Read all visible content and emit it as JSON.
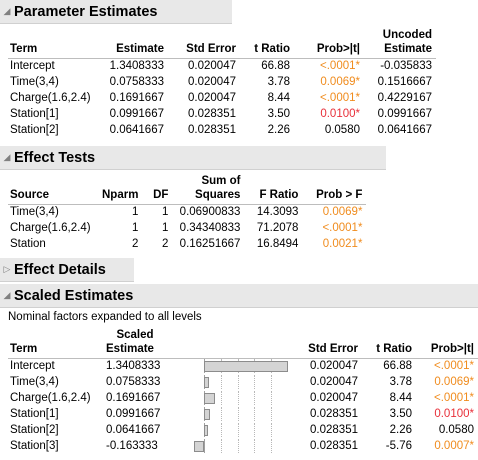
{
  "param": {
    "title": "Parameter Estimates",
    "headers": {
      "term": "Term",
      "estimate": "Estimate",
      "std_error": "Std Error",
      "t_ratio": "t Ratio",
      "prob": "Prob>|t|",
      "uncoded_1": "Uncoded",
      "uncoded_2": "Estimate"
    },
    "rows": [
      {
        "term": "Intercept",
        "estimate": "1.3408333",
        "std_error": "0.020047",
        "t_ratio": "66.88",
        "prob": "<.0001*",
        "prob_color": "orange",
        "uncoded": "-0.035833"
      },
      {
        "term": "Time(3,4)",
        "estimate": "0.0758333",
        "std_error": "0.020047",
        "t_ratio": "3.78",
        "prob": "0.0069*",
        "prob_color": "orange",
        "uncoded": "0.1516667"
      },
      {
        "term": "Charge(1.6,2.4)",
        "estimate": "0.1691667",
        "std_error": "0.020047",
        "t_ratio": "8.44",
        "prob": "<.0001*",
        "prob_color": "orange",
        "uncoded": "0.4229167"
      },
      {
        "term": "Station[1]",
        "estimate": "0.0991667",
        "std_error": "0.028351",
        "t_ratio": "3.50",
        "prob": "0.0100*",
        "prob_color": "red",
        "uncoded": "0.0991667"
      },
      {
        "term": "Station[2]",
        "estimate": "0.0641667",
        "std_error": "0.028351",
        "t_ratio": "2.26",
        "prob": "0.0580",
        "prob_color": "none",
        "uncoded": "0.0641667"
      }
    ]
  },
  "effects": {
    "title": "Effect Tests",
    "headers": {
      "source": "Source",
      "nparm": "Nparm",
      "df": "DF",
      "ss_1": "Sum of",
      "ss_2": "Squares",
      "f_ratio": "F Ratio",
      "prob": "Prob > F"
    },
    "rows": [
      {
        "source": "Time(3,4)",
        "nparm": "1",
        "df": "1",
        "ss": "0.06900833",
        "f_ratio": "14.3093",
        "prob": "0.0069*",
        "prob_color": "orange"
      },
      {
        "source": "Charge(1.6,2.4)",
        "nparm": "1",
        "df": "1",
        "ss": "0.34340833",
        "f_ratio": "71.2078",
        "prob": "<.0001*",
        "prob_color": "orange"
      },
      {
        "source": "Station",
        "nparm": "2",
        "df": "2",
        "ss": "0.16251667",
        "f_ratio": "16.8494",
        "prob": "0.0021*",
        "prob_color": "orange"
      }
    ]
  },
  "details": {
    "title": "Effect Details"
  },
  "scaled": {
    "title": "Scaled Estimates",
    "note": "Nominal factors expanded to all levels",
    "headers": {
      "term": "Term",
      "scaled_1": "Scaled",
      "scaled_2": "Estimate",
      "std_error": "Std Error",
      "t_ratio": "t Ratio",
      "prob": "Prob>|t|"
    },
    "bar_scale_max": 1.3408333,
    "rows": [
      {
        "term": "Intercept",
        "estimate": "1.3408333",
        "value": 1.3408333,
        "std_error": "0.020047",
        "t_ratio": "66.88",
        "prob": "<.0001*",
        "prob_color": "orange"
      },
      {
        "term": "Time(3,4)",
        "estimate": "0.0758333",
        "value": 0.0758333,
        "std_error": "0.020047",
        "t_ratio": "3.78",
        "prob": "0.0069*",
        "prob_color": "orange"
      },
      {
        "term": "Charge(1.6,2.4)",
        "estimate": "0.1691667",
        "value": 0.1691667,
        "std_error": "0.020047",
        "t_ratio": "8.44",
        "prob": "<.0001*",
        "prob_color": "orange"
      },
      {
        "term": "Station[1]",
        "estimate": "0.0991667",
        "value": 0.0991667,
        "std_error": "0.028351",
        "t_ratio": "3.50",
        "prob": "0.0100*",
        "prob_color": "red"
      },
      {
        "term": "Station[2]",
        "estimate": "0.0641667",
        "value": 0.0641667,
        "std_error": "0.028351",
        "t_ratio": "2.26",
        "prob": "0.0580",
        "prob_color": "none"
      },
      {
        "term": "Station[3]",
        "estimate": "-0.163333",
        "value": -0.163333,
        "std_error": "0.028351",
        "t_ratio": "-5.76",
        "prob": "0.0007*",
        "prob_color": "orange"
      }
    ]
  },
  "colors": {
    "orange": "#f08c1e",
    "red": "#e8303a",
    "header_bg": "#e8e8e8"
  },
  "icons": {
    "expanded": "disclosure-triangle-expanded-icon",
    "collapsed": "disclosure-triangle-collapsed-icon"
  }
}
